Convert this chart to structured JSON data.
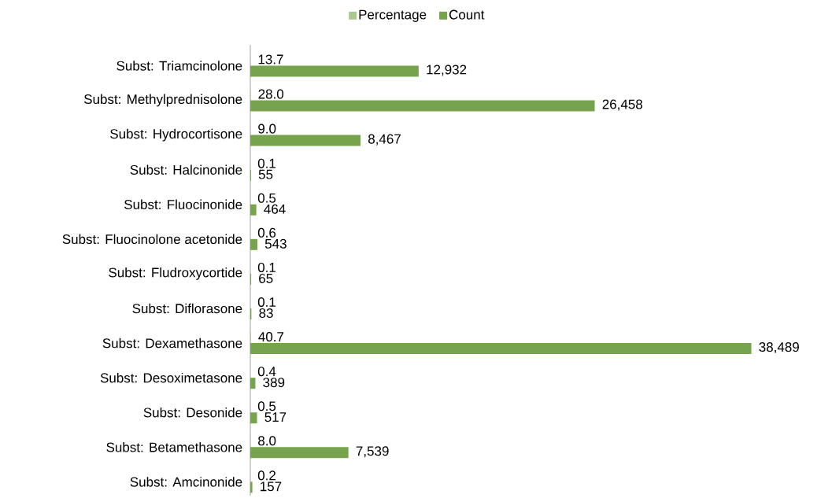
{
  "chart_data": {
    "type": "bar",
    "orientation": "horizontal",
    "categories": [
      "Subst: Triamcinolone",
      "Subst: Methylprednisolone",
      "Subst: Hydrocortisone",
      "Subst: Halcinonide",
      "Subst: Fluocinonide",
      "Subst: Fluocinolone acetonide",
      "Subst: Fludroxycortide",
      "Subst: Diflorasone",
      "Subst: Dexamethasone",
      "Subst: Desoximetasone",
      "Subst: Desonide",
      "Subst: Betamethasone",
      "Subst: Amcinonide"
    ],
    "series": [
      {
        "name": "Percentage",
        "color": "#a9c98f",
        "values": [
          13.7,
          28.0,
          9.0,
          0.1,
          0.5,
          0.6,
          0.1,
          0.1,
          40.7,
          0.4,
          0.5,
          8.0,
          0.2
        ],
        "value_labels": [
          "13.7",
          "28.0",
          "9.0",
          "0.1",
          "0.5",
          "0.6",
          "0.1",
          "0.1",
          "40.7",
          "0.4",
          "0.5",
          "8.0",
          "0.2"
        ]
      },
      {
        "name": "Count",
        "color": "#77a34f",
        "values": [
          12932,
          26458,
          8467,
          55,
          464,
          543,
          65,
          83,
          38489,
          389,
          517,
          7539,
          157
        ],
        "value_labels": [
          "12,932",
          "26,458",
          "8,467",
          "55",
          "464",
          "543",
          "65",
          "83",
          "38,489",
          "389",
          "517",
          "7,539",
          "157"
        ]
      }
    ],
    "legend": "top",
    "tick_labels": "y"
  }
}
